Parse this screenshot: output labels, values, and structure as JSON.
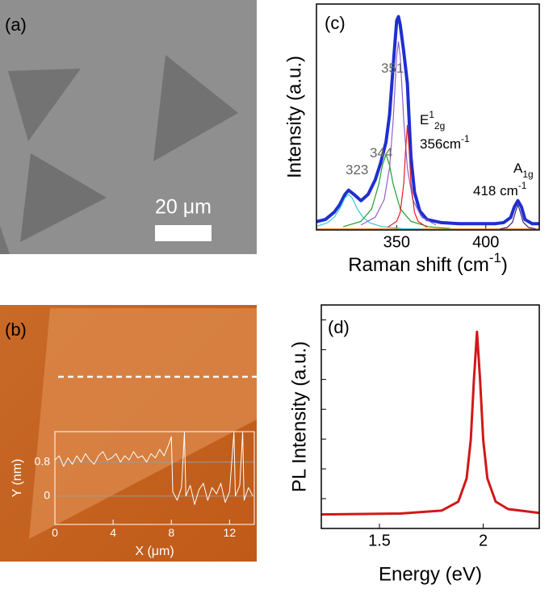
{
  "images": [
    {
      "label": "(a)",
      "scale_bar": "20 μm"
    },
    {
      "label": "(b)"
    }
  ],
  "chart_data": [
    {
      "type": "line",
      "label": "(c)",
      "ylabel": "Intensity (a.u.)",
      "xlabel": [
        "Raman shift  (cm",
        "-1",
        ")"
      ],
      "xlim": [
        305,
        430
      ],
      "xticks": [
        350,
        400
      ],
      "ylim": [
        0,
        1.08
      ],
      "yticks": [],
      "axis_color": "#000000",
      "annotations": [
        [
          "323"
        ],
        [
          "344"
        ],
        [
          "351"
        ],
        [
          "E",
          "1",
          "2g"
        ],
        [
          "356cm",
          "-1"
        ],
        [
          "A",
          "1g"
        ],
        [
          "418 cm",
          "-1"
        ]
      ],
      "series": [
        {
          "color": "#1f2fd0",
          "width": 4,
          "x": [
            305,
            310,
            315,
            318,
            321,
            323,
            326,
            330,
            334,
            338,
            341,
            344,
            346,
            348,
            350,
            351,
            352,
            354,
            356,
            358,
            360,
            363,
            367,
            375,
            385,
            395,
            405,
            410,
            414,
            416,
            418,
            420,
            422,
            426,
            430
          ],
          "values": [
            0.04,
            0.05,
            0.085,
            0.12,
            0.17,
            0.19,
            0.17,
            0.14,
            0.17,
            0.24,
            0.32,
            0.42,
            0.55,
            0.78,
            1.0,
            1.02,
            0.98,
            0.85,
            0.7,
            0.35,
            0.18,
            0.09,
            0.05,
            0.035,
            0.03,
            0.03,
            0.03,
            0.035,
            0.06,
            0.11,
            0.14,
            0.11,
            0.05,
            0.03,
            0.03
          ]
        },
        {
          "color": "#f08020",
          "width": 1.2,
          "x": [
            305,
            430
          ],
          "values": [
            0.005,
            0.005
          ]
        },
        {
          "color": "#30c8e0",
          "width": 1.2,
          "x": [
            305,
            311,
            315,
            318,
            321,
            323,
            325,
            328,
            331,
            335,
            341,
            353,
            365
          ],
          "values": [
            0.017,
            0.034,
            0.061,
            0.1,
            0.153,
            0.17,
            0.153,
            0.1,
            0.061,
            0.034,
            0.017,
            0.0065,
            0.0035
          ]
        },
        {
          "color": "#20a030",
          "width": 1.2,
          "x": [
            320,
            330,
            336,
            340,
            342,
            344,
            346,
            348,
            352,
            358,
            368,
            380
          ],
          "values": [
            0.015,
            0.041,
            0.101,
            0.22,
            0.31,
            0.36,
            0.31,
            0.22,
            0.101,
            0.041,
            0.015,
            0.007
          ]
        },
        {
          "color": "#9060d0",
          "width": 1.2,
          "x": [
            330,
            338,
            343,
            346,
            348,
            350,
            351,
            352,
            354,
            356,
            359,
            364,
            372
          ],
          "values": [
            0.024,
            0.061,
            0.145,
            0.296,
            0.52,
            0.83,
            0.9,
            0.83,
            0.52,
            0.296,
            0.145,
            0.061,
            0.024
          ]
        },
        {
          "color": "#e02020",
          "width": 1.2,
          "x": [
            345,
            350,
            352,
            354,
            355,
            356,
            357,
            358,
            360,
            362,
            367
          ],
          "values": [
            0.013,
            0.041,
            0.084,
            0.224,
            0.38,
            0.5,
            0.38,
            0.224,
            0.084,
            0.041,
            0.013
          ]
        },
        {
          "color": "#402080",
          "width": 1.2,
          "x": [
            408,
            412,
            415,
            417,
            418,
            419,
            421,
            424,
            428
          ],
          "values": [
            0.0046,
            0.012,
            0.037,
            0.096,
            0.12,
            0.096,
            0.037,
            0.012,
            0.0046
          ]
        }
      ]
    },
    {
      "type": "line",
      "label": "(d)",
      "ylabel": "PL Intensity (a.u.)",
      "xlabel": "Energy (eV)",
      "xlim": [
        1.22,
        2.27
      ],
      "xticks": [
        1.5,
        2
      ],
      "ylim": [
        0,
        7.5
      ],
      "yticks": [
        1,
        2,
        3,
        4,
        5,
        6,
        7
      ],
      "ytick_labels": false,
      "axis_color": "#000000",
      "series": [
        {
          "color": "#d01818",
          "width": 3,
          "x": [
            1.22,
            1.6,
            1.8,
            1.88,
            1.92,
            1.94,
            1.955,
            1.97,
            1.985,
            2.0,
            2.02,
            2.06,
            2.12,
            2.27
          ],
          "values": [
            0.47,
            0.5,
            0.6,
            0.9,
            1.68,
            2.97,
            4.97,
            6.6,
            4.97,
            2.97,
            1.68,
            0.9,
            0.65,
            0.52
          ]
        }
      ]
    },
    {
      "type": "line",
      "ylabel": "Y (nm)",
      "xlabel": "X (μm)",
      "xlim": [
        0,
        13.7
      ],
      "xticks": [
        0,
        4,
        8,
        12
      ],
      "ylim": [
        -0.67,
        1.52
      ],
      "yticks": [
        0,
        0.8
      ],
      "grid": true,
      "axis_color": "#ffffff",
      "series": [
        {
          "color": "#ffffff",
          "width": 1,
          "x": [
            0,
            0.3,
            0.6,
            0.9,
            1.2,
            1.5,
            1.8,
            2.1,
            2.4,
            2.7,
            3.0,
            3.3,
            3.6,
            3.9,
            4.2,
            4.5,
            4.8,
            5.1,
            5.4,
            5.7,
            6.0,
            6.3,
            6.6,
            6.9,
            7.2,
            7.5,
            7.8,
            8.0,
            8.1,
            8.4,
            8.7,
            8.9,
            9.0,
            9.3,
            9.6,
            9.9,
            10.2,
            10.5,
            10.8,
            11.1,
            11.4,
            11.7,
            12.0,
            12.3,
            12.4,
            12.7,
            12.9,
            13.0,
            13.3,
            13.6
          ],
          "values": [
            0.85,
            0.95,
            0.7,
            0.9,
            0.75,
            0.95,
            0.8,
            1.0,
            0.85,
            0.75,
            0.95,
            1.05,
            0.85,
            0.9,
            1.0,
            0.8,
            0.95,
            0.85,
            1.05,
            0.9,
            0.95,
            0.8,
            1.0,
            0.9,
            1.1,
            0.95,
            1.2,
            1.4,
            0.1,
            -0.1,
            0.2,
            1.5,
            0.0,
            0.25,
            -0.2,
            0.15,
            0.3,
            -0.1,
            0.2,
            0.05,
            0.3,
            -0.15,
            0.1,
            1.5,
            0.0,
            0.25,
            1.5,
            -0.1,
            0.2,
            0.0
          ]
        }
      ]
    }
  ]
}
